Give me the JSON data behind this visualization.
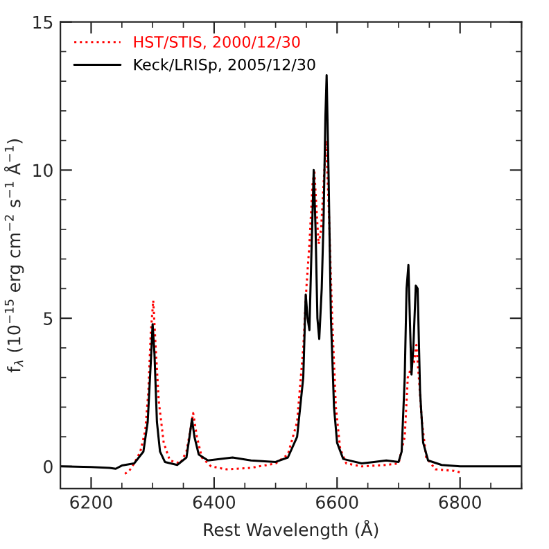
{
  "chart_data": {
    "type": "line",
    "xlabel": "Rest Wavelength (Å)",
    "ylabel": "f$_{λ}$ (10$^{−15}$ erg cm$^{−2}$ s$^{−1}$ Å$^{−1}$)",
    "xlim": [
      6150,
      6900
    ],
    "ylim": [
      -0.75,
      15
    ],
    "xticks": [
      6200,
      6400,
      6600,
      6800
    ],
    "yticks": [
      0,
      5,
      10,
      15
    ],
    "legend": "top left",
    "grid": false,
    "marker": "none",
    "series": [
      {
        "name": "HST/STIS, 2000/12/30",
        "color": "#ff0000",
        "line_style": "dotted",
        "x": [
          6255,
          6262,
          6270,
          6280,
          6288,
          6293,
          6297,
          6301,
          6305,
          6310,
          6318,
          6328,
          6345,
          6355,
          6362,
          6366,
          6372,
          6380,
          6395,
          6420,
          6460,
          6500,
          6520,
          6535,
          6545,
          6550,
          6555,
          6560,
          6563,
          6567,
          6570,
          6574,
          6578,
          6582,
          6586,
          6592,
          6598,
          6605,
          6615,
          6640,
          6680,
          6700,
          6710,
          6715,
          6720,
          6725,
          6729,
          6733,
          6738,
          6745,
          6760,
          6790,
          6800
        ],
        "values": [
          -0.25,
          -0.15,
          0.1,
          0.5,
          1.2,
          2.5,
          4.5,
          5.6,
          4.0,
          2.2,
          0.8,
          0.2,
          0.1,
          0.5,
          1.3,
          1.8,
          1.0,
          0.3,
          0.0,
          -0.1,
          -0.05,
          0.1,
          0.4,
          1.5,
          4.0,
          6.0,
          7.5,
          9.5,
          10.0,
          8.5,
          7.5,
          8.0,
          9.5,
          11.0,
          9.0,
          5.0,
          2.0,
          0.6,
          0.1,
          0.0,
          0.05,
          0.1,
          1.0,
          3.0,
          3.3,
          3.5,
          4.1,
          3.0,
          1.5,
          0.3,
          -0.1,
          -0.15,
          -0.2
        ]
      },
      {
        "name": "Keck/LRISp, 2005/12/30",
        "color": "#000000",
        "line_style": "solid",
        "x": [
          6150,
          6200,
          6230,
          6240,
          6250,
          6270,
          6285,
          6292,
          6297,
          6300,
          6303,
          6307,
          6312,
          6320,
          6340,
          6355,
          6360,
          6364,
          6368,
          6375,
          6390,
          6430,
          6460,
          6500,
          6520,
          6535,
          6545,
          6549,
          6552,
          6555,
          6558,
          6562,
          6565,
          6568,
          6571,
          6575,
          6578,
          6581,
          6583,
          6586,
          6590,
          6595,
          6600,
          6610,
          6640,
          6660,
          6680,
          6700,
          6705,
          6710,
          6713,
          6716,
          6719,
          6721,
          6724,
          6728,
          6731,
          6735,
          6740,
          6748,
          6770,
          6800,
          6850,
          6900
        ],
        "values": [
          0,
          -0.02,
          -0.05,
          -0.08,
          0.03,
          0.1,
          0.5,
          1.5,
          3.5,
          4.8,
          3.8,
          1.5,
          0.5,
          0.15,
          0.05,
          0.3,
          1.0,
          1.6,
          1.0,
          0.4,
          0.2,
          0.3,
          0.2,
          0.15,
          0.3,
          1.0,
          3.0,
          5.8,
          5.0,
          4.6,
          7.0,
          10.0,
          8.0,
          5.0,
          4.3,
          6.0,
          8.3,
          11.8,
          13.2,
          10.0,
          5.0,
          2.0,
          0.8,
          0.25,
          0.1,
          0.15,
          0.2,
          0.15,
          0.5,
          3.0,
          6.0,
          6.8,
          4.5,
          3.1,
          4.0,
          6.1,
          6.0,
          2.5,
          0.8,
          0.2,
          0.05,
          0.0,
          0,
          0
        ]
      }
    ]
  }
}
